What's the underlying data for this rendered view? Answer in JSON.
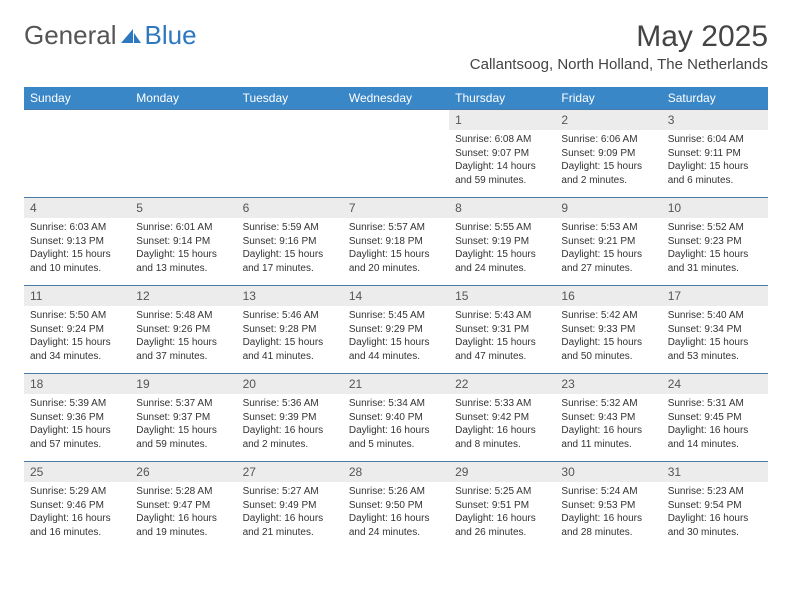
{
  "logo": {
    "general": "General",
    "blue": "Blue"
  },
  "header": {
    "title": "May 2025",
    "location": "Callantsoog, North Holland, The Netherlands"
  },
  "colors": {
    "header_bg": "#3a87c8",
    "border": "#4a7ba8",
    "daynum_bg": "#ececec",
    "text": "#333333"
  },
  "weekdays": [
    "Sunday",
    "Monday",
    "Tuesday",
    "Wednesday",
    "Thursday",
    "Friday",
    "Saturday"
  ],
  "days": [
    {
      "n": 1,
      "sunrise": "6:08 AM",
      "sunset": "9:07 PM",
      "daylight": "14 hours and 59 minutes."
    },
    {
      "n": 2,
      "sunrise": "6:06 AM",
      "sunset": "9:09 PM",
      "daylight": "15 hours and 2 minutes."
    },
    {
      "n": 3,
      "sunrise": "6:04 AM",
      "sunset": "9:11 PM",
      "daylight": "15 hours and 6 minutes."
    },
    {
      "n": 4,
      "sunrise": "6:03 AM",
      "sunset": "9:13 PM",
      "daylight": "15 hours and 10 minutes."
    },
    {
      "n": 5,
      "sunrise": "6:01 AM",
      "sunset": "9:14 PM",
      "daylight": "15 hours and 13 minutes."
    },
    {
      "n": 6,
      "sunrise": "5:59 AM",
      "sunset": "9:16 PM",
      "daylight": "15 hours and 17 minutes."
    },
    {
      "n": 7,
      "sunrise": "5:57 AM",
      "sunset": "9:18 PM",
      "daylight": "15 hours and 20 minutes."
    },
    {
      "n": 8,
      "sunrise": "5:55 AM",
      "sunset": "9:19 PM",
      "daylight": "15 hours and 24 minutes."
    },
    {
      "n": 9,
      "sunrise": "5:53 AM",
      "sunset": "9:21 PM",
      "daylight": "15 hours and 27 minutes."
    },
    {
      "n": 10,
      "sunrise": "5:52 AM",
      "sunset": "9:23 PM",
      "daylight": "15 hours and 31 minutes."
    },
    {
      "n": 11,
      "sunrise": "5:50 AM",
      "sunset": "9:24 PM",
      "daylight": "15 hours and 34 minutes."
    },
    {
      "n": 12,
      "sunrise": "5:48 AM",
      "sunset": "9:26 PM",
      "daylight": "15 hours and 37 minutes."
    },
    {
      "n": 13,
      "sunrise": "5:46 AM",
      "sunset": "9:28 PM",
      "daylight": "15 hours and 41 minutes."
    },
    {
      "n": 14,
      "sunrise": "5:45 AM",
      "sunset": "9:29 PM",
      "daylight": "15 hours and 44 minutes."
    },
    {
      "n": 15,
      "sunrise": "5:43 AM",
      "sunset": "9:31 PM",
      "daylight": "15 hours and 47 minutes."
    },
    {
      "n": 16,
      "sunrise": "5:42 AM",
      "sunset": "9:33 PM",
      "daylight": "15 hours and 50 minutes."
    },
    {
      "n": 17,
      "sunrise": "5:40 AM",
      "sunset": "9:34 PM",
      "daylight": "15 hours and 53 minutes."
    },
    {
      "n": 18,
      "sunrise": "5:39 AM",
      "sunset": "9:36 PM",
      "daylight": "15 hours and 57 minutes."
    },
    {
      "n": 19,
      "sunrise": "5:37 AM",
      "sunset": "9:37 PM",
      "daylight": "15 hours and 59 minutes."
    },
    {
      "n": 20,
      "sunrise": "5:36 AM",
      "sunset": "9:39 PM",
      "daylight": "16 hours and 2 minutes."
    },
    {
      "n": 21,
      "sunrise": "5:34 AM",
      "sunset": "9:40 PM",
      "daylight": "16 hours and 5 minutes."
    },
    {
      "n": 22,
      "sunrise": "5:33 AM",
      "sunset": "9:42 PM",
      "daylight": "16 hours and 8 minutes."
    },
    {
      "n": 23,
      "sunrise": "5:32 AM",
      "sunset": "9:43 PM",
      "daylight": "16 hours and 11 minutes."
    },
    {
      "n": 24,
      "sunrise": "5:31 AM",
      "sunset": "9:45 PM",
      "daylight": "16 hours and 14 minutes."
    },
    {
      "n": 25,
      "sunrise": "5:29 AM",
      "sunset": "9:46 PM",
      "daylight": "16 hours and 16 minutes."
    },
    {
      "n": 26,
      "sunrise": "5:28 AM",
      "sunset": "9:47 PM",
      "daylight": "16 hours and 19 minutes."
    },
    {
      "n": 27,
      "sunrise": "5:27 AM",
      "sunset": "9:49 PM",
      "daylight": "16 hours and 21 minutes."
    },
    {
      "n": 28,
      "sunrise": "5:26 AM",
      "sunset": "9:50 PM",
      "daylight": "16 hours and 24 minutes."
    },
    {
      "n": 29,
      "sunrise": "5:25 AM",
      "sunset": "9:51 PM",
      "daylight": "16 hours and 26 minutes."
    },
    {
      "n": 30,
      "sunrise": "5:24 AM",
      "sunset": "9:53 PM",
      "daylight": "16 hours and 28 minutes."
    },
    {
      "n": 31,
      "sunrise": "5:23 AM",
      "sunset": "9:54 PM",
      "daylight": "16 hours and 30 minutes."
    }
  ],
  "first_weekday_index": 4,
  "labels": {
    "sunrise": "Sunrise: ",
    "sunset": "Sunset: ",
    "daylight": "Daylight: "
  }
}
